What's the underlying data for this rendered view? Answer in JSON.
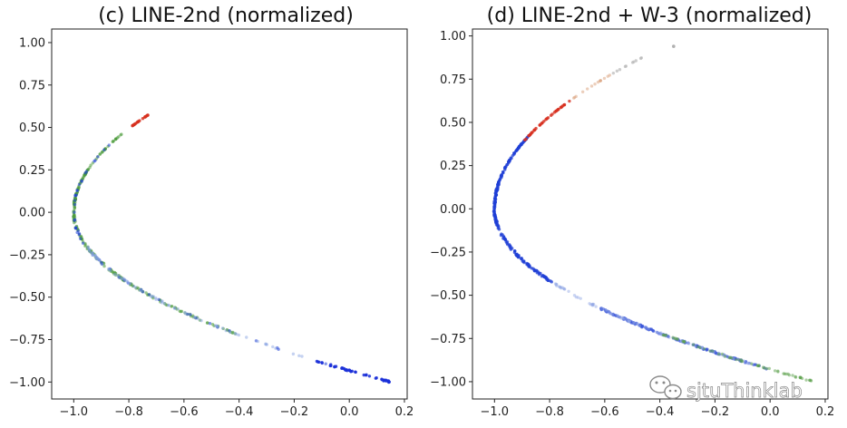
{
  "chart_data": [
    {
      "type": "scatter",
      "title": "(c) LINE-2nd (normalized)",
      "xlabel": "",
      "ylabel": "",
      "xlim": [
        -1.08,
        0.21
      ],
      "ylim": [
        -1.1,
        1.08
      ],
      "xticks": [
        -1.0,
        -0.8,
        -0.6,
        -0.4,
        -0.2,
        0.0,
        0.2
      ],
      "xtick_labels": [
        "−1.0",
        "−0.8",
        "−0.6",
        "−0.4",
        "−0.2",
        "0.0",
        "0.2"
      ],
      "yticks": [
        -1.0,
        -0.75,
        -0.5,
        -0.25,
        0.0,
        0.25,
        0.5,
        0.75,
        1.0
      ],
      "ytick_labels": [
        "−1.00",
        "−0.75",
        "−0.50",
        "−0.25",
        "0.00",
        "0.25",
        "0.50",
        "0.75",
        "1.00"
      ],
      "series": [
        {
          "name": "green",
          "color": "#4a9a3a",
          "t_range": [
            0.55,
            2.93
          ],
          "count": 230,
          "alpha": 0.55
        },
        {
          "name": "blue",
          "color": "#1f3fd6",
          "t_range": [
            0.2,
            2.9
          ],
          "count": 50,
          "alpha": 0.55
        },
        {
          "name": "light-blue",
          "color": "#7f9be0",
          "t_range": [
            0.3,
            1.6
          ],
          "count": 80,
          "alpha": 0.45
        },
        {
          "name": "blue-end",
          "color": "#1a2fd8",
          "t_range": [
            0.0,
            0.27
          ],
          "count": 45,
          "alpha": 0.85
        },
        {
          "name": "red-end",
          "color": "#d7301f",
          "t_range": [
            3.0,
            3.15
          ],
          "count": 22,
          "alpha": 0.85
        }
      ]
    },
    {
      "type": "scatter",
      "title": "(d) LINE-2nd + W-3 (normalized)",
      "xlabel": "",
      "ylabel": "",
      "xlim": [
        -1.08,
        0.21
      ],
      "ylim": [
        -1.1,
        1.04
      ],
      "xticks": [
        -1.0,
        -0.8,
        -0.6,
        -0.4,
        -0.2,
        0.0,
        0.2
      ],
      "xtick_labels": [
        "−1.0",
        "−0.8",
        "−0.6",
        "−0.4",
        "−0.2",
        "0.0",
        "0.2"
      ],
      "yticks": [
        -1.0,
        -0.75,
        -0.5,
        -0.25,
        0.0,
        0.25,
        0.5,
        0.75,
        1.0
      ],
      "ytick_labels": [
        "−1.00",
        "−0.75",
        "−0.50",
        "−0.25",
        "0.00",
        "0.25",
        "0.50",
        "0.75",
        "1.00"
      ],
      "series": [
        {
          "name": "blue-dense",
          "color": "#1f3fd6",
          "t_range": [
            1.15,
            2.85
          ],
          "count": 260,
          "alpha": 0.75
        },
        {
          "name": "blue-lower-tail",
          "color": "#3552d8",
          "t_range": [
            0.15,
            0.85
          ],
          "count": 140,
          "alpha": 0.6
        },
        {
          "name": "light-blue",
          "color": "#8ea4e4",
          "t_range": [
            0.2,
            1.15
          ],
          "count": 90,
          "alpha": 0.45
        },
        {
          "name": "green",
          "color": "#5aa04a",
          "t_range": [
            0.0,
            0.55
          ],
          "count": 60,
          "alpha": 0.5
        },
        {
          "name": "red",
          "color": "#d7301f",
          "t_range": [
            2.8,
            3.25
          ],
          "count": 40,
          "alpha": 0.8
        },
        {
          "name": "orange",
          "color": "#d9a07a",
          "t_range": [
            3.25,
            3.55
          ],
          "count": 14,
          "alpha": 0.5
        },
        {
          "name": "grey",
          "color": "#b8b8b8",
          "t_range": [
            3.55,
            3.92
          ],
          "count": 10,
          "alpha": 0.7
        }
      ],
      "outlier": {
        "x": -0.35,
        "y": 0.94,
        "color": "#b0b0b0"
      }
    }
  ],
  "watermark": {
    "text": "sjtuThinklab",
    "icon": "wechat-icon"
  }
}
